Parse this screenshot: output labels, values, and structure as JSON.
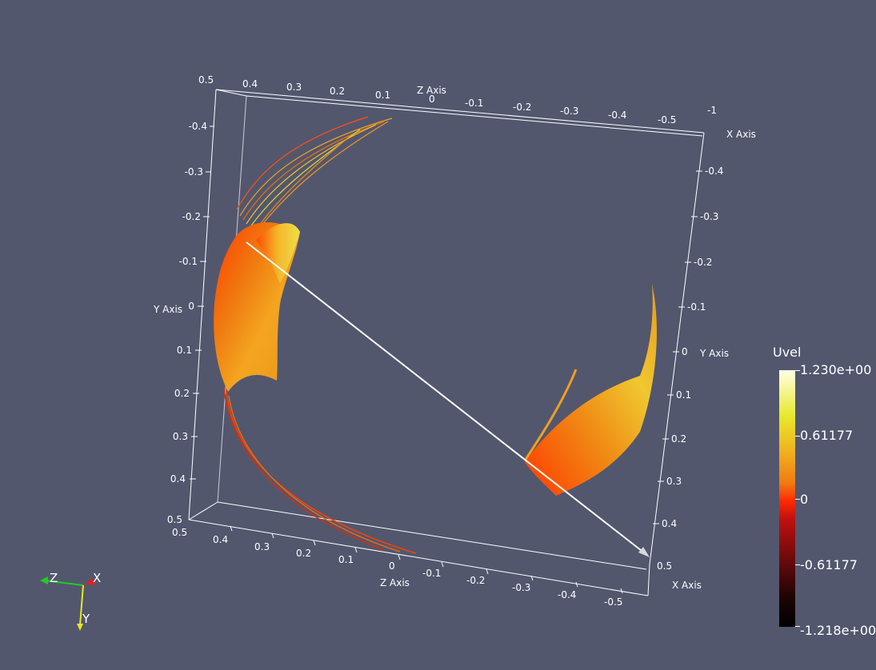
{
  "colors": {
    "background": "#52576e",
    "axis": "#ffffff"
  },
  "axes": {
    "z_top_label": "Z Axis",
    "x_top_label": "X Axis",
    "y_left_label": "Y Axis",
    "y_right_label": "Y Axis",
    "z_bottom_label": "Z Axis",
    "x_bottom_label": "X Axis",
    "z_top_ticks": [
      "0.5",
      "0.4",
      "0.3",
      "0.2",
      "0.1",
      "0"
    ],
    "x_top_ticks": [
      "-0.1",
      "-0.2",
      "-0.3",
      "-0.4",
      "-0.5",
      "-1"
    ],
    "y_left_ticks": [
      "-0.4",
      "-0.3",
      "-0.2",
      "-0.1",
      "0",
      "0.1",
      "0.2",
      "0.3",
      "0.4",
      "0.5"
    ],
    "y_right_ticks": [
      "-0.4",
      "-0.3",
      "-0.2",
      "-0.1",
      "0",
      "0.1",
      "0.2",
      "0.3",
      "0.4",
      "0.5"
    ],
    "z_bottom_ticks": [
      "0.5",
      "0.4",
      "0.3",
      "0.2",
      "0.1",
      "0"
    ],
    "x_bottom_ticks": [
      "-0.1",
      "-0.2",
      "-0.3",
      "-0.4",
      "-0.5"
    ]
  },
  "legend": {
    "title": "Uvel",
    "max": "1.230e+00",
    "upper": "0.61177",
    "mid": "0",
    "lower": "-0.61177",
    "min": "-1.218e+00"
  },
  "orientation": {
    "z": "Z",
    "x": "X",
    "y": "Y"
  }
}
